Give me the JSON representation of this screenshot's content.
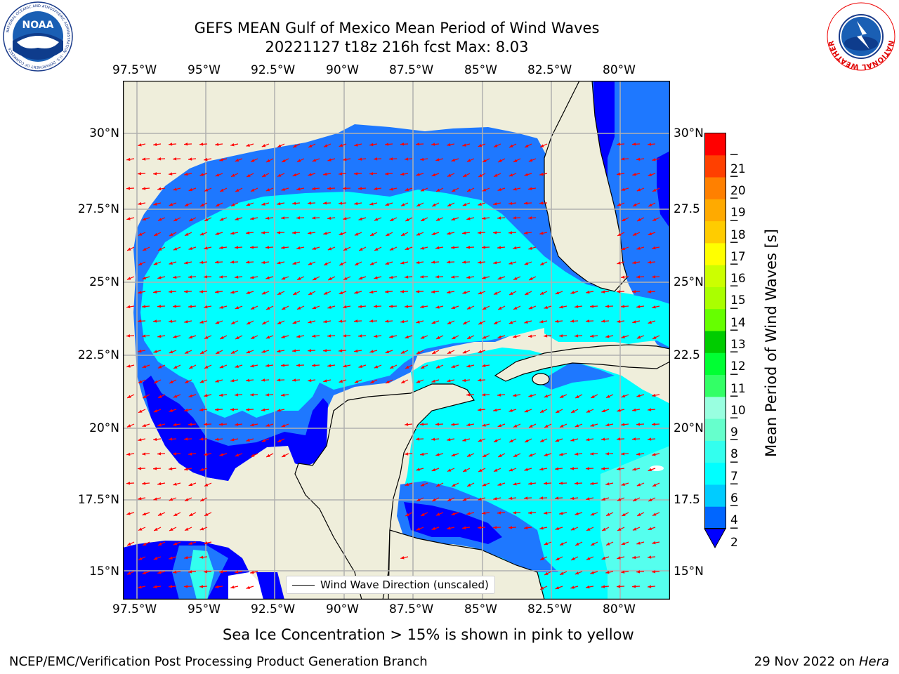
{
  "title_line1": "GEFS MEAN Gulf of Mexico Mean Period of Wind Waves",
  "title_line2": "20221127 t18z 216h fcst   Max: 8.03",
  "lon_ticks": [
    "97.5°W",
    "95°W",
    "92.5°W",
    "90°W",
    "87.5°W",
    "85°W",
    "82.5°W",
    "80°W"
  ],
  "lat_ticks_left": [
    "30°N",
    "27.5°N",
    "25°N",
    "22.5°N",
    "20°N",
    "17.5°N",
    "15°N"
  ],
  "lat_ticks_right": [
    "30°N",
    "27.5",
    "25°N",
    "22.5",
    "20°N",
    "17.5",
    "15°N"
  ],
  "legend_label": "Wind Wave Direction (unscaled)",
  "colorbar": {
    "label": "Mean Period of Wind Waves [s]",
    "ticks": [
      "2",
      "4",
      "6",
      "7",
      "8",
      "9",
      "10",
      "11",
      "12",
      "13",
      "14",
      "15",
      "16",
      "17",
      "18",
      "19",
      "20",
      "21"
    ],
    "colors": [
      "#0066ff",
      "#00ccff",
      "#00ffff",
      "#33ffee",
      "#66ffcc",
      "#99ffe0",
      "#33ff66",
      "#00ff33",
      "#00cc00",
      "#66ff00",
      "#aaff00",
      "#ccff00",
      "#ffff00",
      "#ffcc00",
      "#ffaa00",
      "#ff8000",
      "#ff4000",
      "#ff0000"
    ],
    "extend_color": "#0000ff"
  },
  "colors": {
    "land": "#efeedb",
    "deep_blue": "#0000ff",
    "mid_blue": "#1e78ff",
    "cyan": "#00ffff",
    "light_cyan": "#55ffee",
    "arrow": "#ff0000",
    "grid": "#b0b0b0"
  },
  "sea_ice_note": "Sea Ice Concentration > 15% is shown in pink to yellow",
  "footer_left": "NCEP/EMC/Verification Post Processing Product Generation Branch",
  "footer_right": "29 Nov 2022 on ",
  "footer_right_italic": "Hera",
  "logo_left_text": "NOAA",
  "logo_left_ring": "NATIONAL OCEANIC AND ATMOSPHERIC ADMINISTRATION · U.S. DEPARTMENT OF COMMERCE",
  "logo_right_ring": "NATIONAL WEATHER SERVICE"
}
